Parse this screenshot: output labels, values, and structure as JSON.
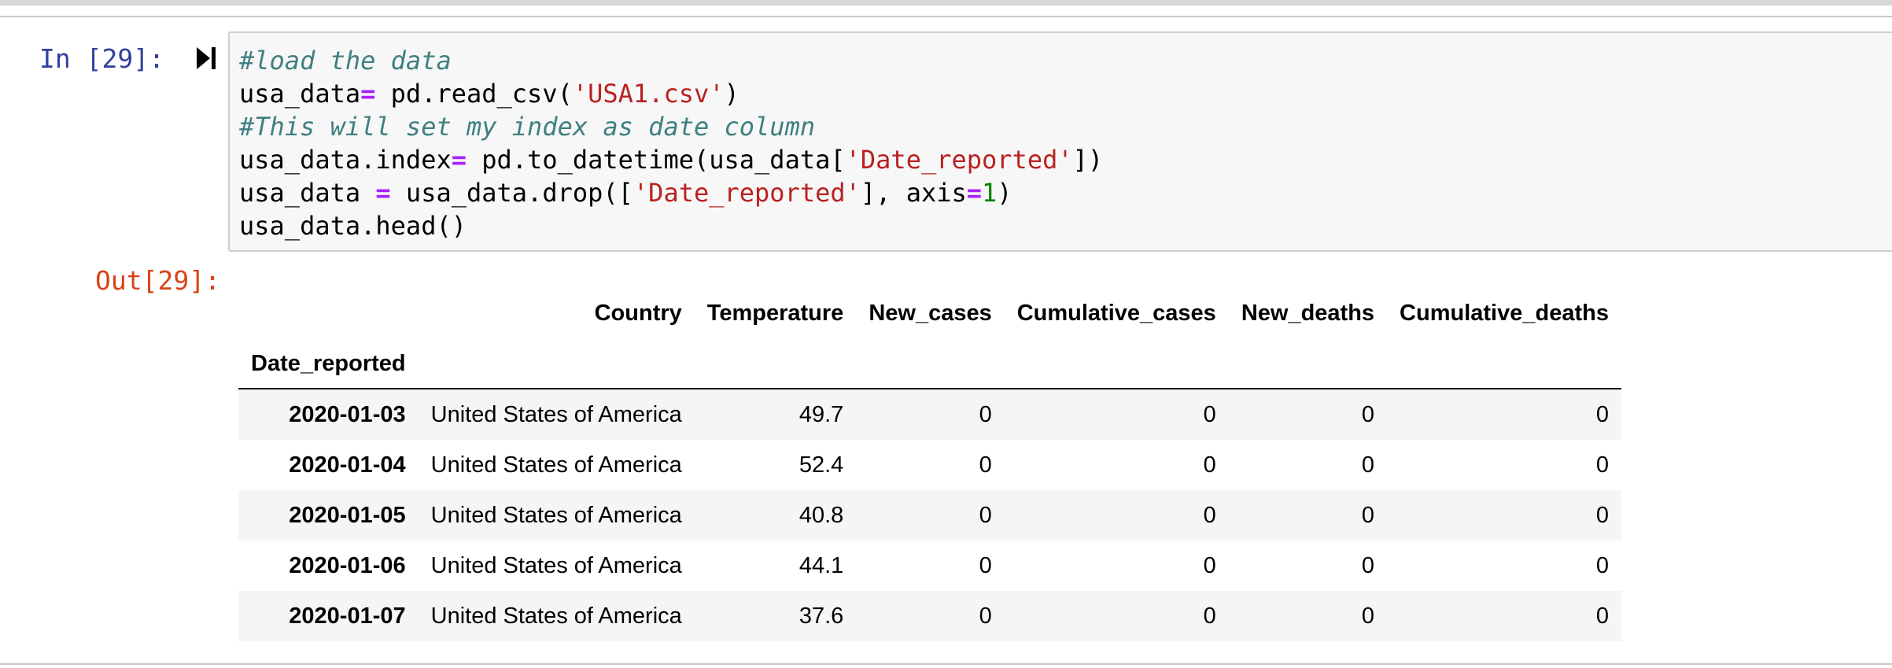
{
  "cell": {
    "in_prompt": "In [29]:",
    "out_prompt": "Out[29]:",
    "code_lines": [
      [
        {
          "t": "#load the data",
          "c": "cm"
        }
      ],
      [
        {
          "t": "usa_data",
          "c": ""
        },
        {
          "t": "=",
          "c": "op"
        },
        {
          "t": " pd.read_csv(",
          "c": ""
        },
        {
          "t": "'USA1.csv'",
          "c": "st"
        },
        {
          "t": ")",
          "c": ""
        }
      ],
      [
        {
          "t": "#This will set my index as date column",
          "c": "cm"
        }
      ],
      [
        {
          "t": "usa_data.index",
          "c": ""
        },
        {
          "t": "=",
          "c": "op"
        },
        {
          "t": " pd.to_datetime(usa_data[",
          "c": ""
        },
        {
          "t": "'Date_reported'",
          "c": "st"
        },
        {
          "t": "])",
          "c": ""
        }
      ],
      [
        {
          "t": "usa_data ",
          "c": ""
        },
        {
          "t": "=",
          "c": "op"
        },
        {
          "t": " usa_data.drop([",
          "c": ""
        },
        {
          "t": "'Date_reported'",
          "c": "st"
        },
        {
          "t": "], axis",
          "c": ""
        },
        {
          "t": "=",
          "c": "op"
        },
        {
          "t": "1",
          "c": "nu"
        },
        {
          "t": ")",
          "c": ""
        }
      ],
      [
        {
          "t": "usa_data.head()",
          "c": ""
        }
      ]
    ]
  },
  "run_icon": "run-cell-icon",
  "table": {
    "columns": [
      "Country",
      "Temperature",
      "New_cases",
      "Cumulative_cases",
      "New_deaths",
      "Cumulative_deaths"
    ],
    "index_name": "Date_reported",
    "rows": [
      {
        "index": "2020-01-03",
        "values": [
          "United States of America",
          "49.7",
          "0",
          "0",
          "0",
          "0"
        ]
      },
      {
        "index": "2020-01-04",
        "values": [
          "United States of America",
          "52.4",
          "0",
          "0",
          "0",
          "0"
        ]
      },
      {
        "index": "2020-01-05",
        "values": [
          "United States of America",
          "40.8",
          "0",
          "0",
          "0",
          "0"
        ]
      },
      {
        "index": "2020-01-06",
        "values": [
          "United States of America",
          "44.1",
          "0",
          "0",
          "0",
          "0"
        ]
      },
      {
        "index": "2020-01-07",
        "values": [
          "United States of America",
          "37.6",
          "0",
          "0",
          "0",
          "0"
        ]
      }
    ]
  },
  "colors": {
    "in_prompt": "#303f9f",
    "out_prompt": "#d84315",
    "comment": "#408080",
    "string": "#ba2121",
    "operator": "#aa22ff",
    "number": "#008000"
  }
}
